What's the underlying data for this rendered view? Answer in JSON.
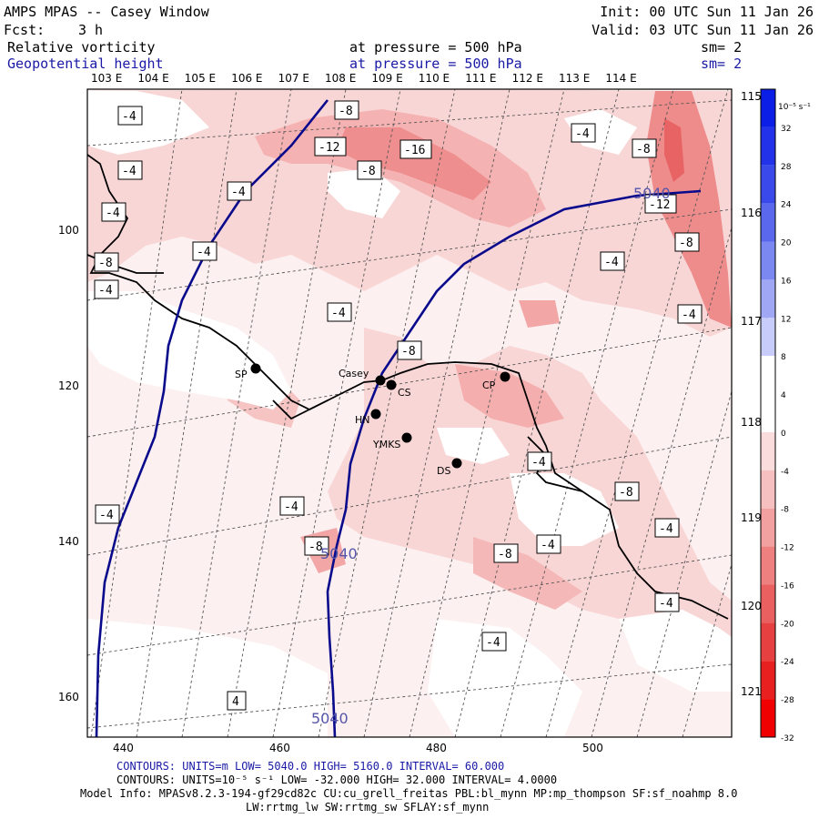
{
  "header": {
    "title": "AMPS MPAS -- Casey Window",
    "fcst_label": "Fcst:",
    "fcst_value": "3 h",
    "init": "Init: 00 UTC Sun 11 Jan 26",
    "valid": "Valid: 03 UTC Sun 11 Jan 26",
    "field1": "Relative vorticity",
    "field2": "Geopotential height",
    "pressure1": "at pressure =  500 hPa",
    "pressure2": "at pressure =  500 hPa",
    "sm1": "sm= 2",
    "sm2": "sm= 2"
  },
  "lon_labels_top": [
    "103 E",
    "104 E",
    "105 E",
    "106 E",
    "107 E",
    "108 E",
    "109 E",
    "110 E",
    "111 E",
    "112 E",
    "113 E",
    "114 E"
  ],
  "lon_labels_right": [
    "115 E",
    "116 E",
    "117 E",
    "118 E",
    "119 E",
    "120 E",
    "121 E"
  ],
  "axes": {
    "x_ticks": [
      "440",
      "460",
      "480",
      "500"
    ],
    "y_ticks": [
      "100",
      "120",
      "140",
      "160"
    ]
  },
  "colorbar": {
    "unit": "10⁻⁵ s⁻¹",
    "labels": [
      "32",
      "28",
      "24",
      "20",
      "16",
      "12",
      "8",
      "4",
      "0",
      "-4",
      "-8",
      "-12",
      "-16",
      "-20",
      "-24",
      "-28",
      "-32"
    ],
    "colors": [
      "#0a1ee6",
      "#2232e8",
      "#3a4aea",
      "#5a68ee",
      "#7c88f2",
      "#a0a8f6",
      "#c8ccfa",
      "#ffffff",
      "#ffffff",
      "#fbdcdc",
      "#f7c0c0",
      "#f2a0a0",
      "#ee8080",
      "#ea6060",
      "#e64040",
      "#e82020",
      "#f00000"
    ]
  },
  "stations": [
    {
      "name": "SP"
    },
    {
      "name": "Casey"
    },
    {
      "name": "CS"
    },
    {
      "name": "HN"
    },
    {
      "name": "YMKS"
    },
    {
      "name": "DS"
    },
    {
      "name": "CP"
    }
  ],
  "contour_labels": [
    "-4",
    "-4",
    "-4",
    "-4",
    "-4",
    "-4",
    "-4",
    "-4",
    "-4",
    "-4",
    "-4",
    "-4",
    "-4",
    "-4",
    "-4",
    "-4",
    "-4",
    "-8",
    "-8",
    "-8",
    "-8",
    "-8",
    "-8",
    "-8",
    "-8",
    "-8",
    "-12",
    "-12",
    "-16",
    "4"
  ],
  "height_labels": [
    "5040",
    "5040",
    "5040"
  ],
  "footer": {
    "line1": "CONTOURS:  UNITS=m  LOW=  5040.0       HIGH=  5160.0      INTERVAL=   60.000",
    "line2": "CONTOURS:  UNITS=10⁻⁵ s⁻¹   LOW= -32.000       HIGH=  32.000      INTERVAL=   4.0000",
    "line3": "Model Info: MPASv8.2.3-194-gf29cd82c CU:cu_grell_freitas PBL:bl_mynn MP:mp_thompson SF:sf_noahmp 8.0",
    "line4": "LW:rrtmg_lw SW:rrtmg_sw SFLAY:sf_mynn"
  }
}
